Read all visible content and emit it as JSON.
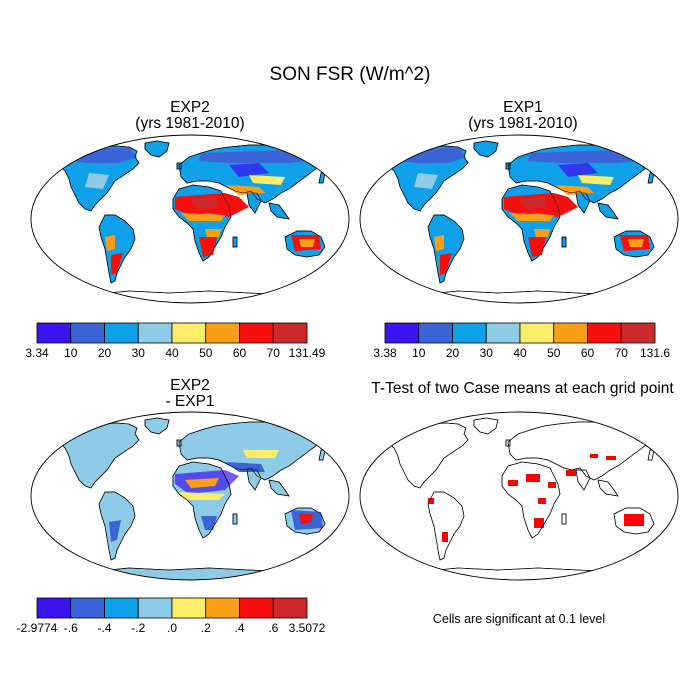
{
  "figure": {
    "title": "SON FSR (W/m^2)"
  },
  "chart_data": [
    {
      "type": "heatmap",
      "title_line1": "EXP2",
      "title_line2": "(yrs 1981-2010)",
      "colorbar": {
        "colors": [
          "#3b14f0",
          "#3a64d8",
          "#0ea1ea",
          "#8ecbe6",
          "#fdee6a",
          "#fba016",
          "#f50f0f",
          "#cc2a2a"
        ],
        "tick_labels": [
          "3.34",
          "10",
          "20",
          "30",
          "40",
          "50",
          "60",
          "70",
          "131.49"
        ]
      }
    },
    {
      "type": "heatmap",
      "title_line1": "EXP1",
      "title_line2": "(yrs 1981-2010)",
      "colorbar": {
        "colors": [
          "#3b14f0",
          "#3a64d8",
          "#0ea1ea",
          "#8ecbe6",
          "#fdee6a",
          "#fba016",
          "#f50f0f",
          "#cc2a2a"
        ],
        "tick_labels": [
          "3.38",
          "10",
          "20",
          "30",
          "40",
          "50",
          "60",
          "70",
          "131.6"
        ]
      }
    },
    {
      "type": "heatmap",
      "title_line1": "EXP2",
      "title_line2": "- EXP1",
      "colorbar": {
        "colors": [
          "#3b14f0",
          "#3a64d8",
          "#0ea1ea",
          "#8ecbe6",
          "#fdee6a",
          "#fba016",
          "#f50f0f",
          "#cc2a2a"
        ],
        "tick_labels": [
          "-2.9774",
          "-.6",
          "-.4",
          "-.2",
          ".0",
          ".2",
          ".4",
          ".6",
          "3.5072"
        ]
      }
    },
    {
      "type": "heatmap",
      "title_line1": "T-Test of two Case means at each grid point",
      "note": "Cells are significant at 0.1 level",
      "significant_color": "#ff0000"
    }
  ],
  "colors": {
    "land_low": "#3a64d8",
    "land_mid": "#0ea1ea",
    "land_light": "#8ecbe6",
    "desert": "#f50f0f",
    "desert_dark": "#cc2a2a",
    "orange": "#fba016",
    "yellow": "#fdee6a",
    "purple": "#3b14f0"
  }
}
